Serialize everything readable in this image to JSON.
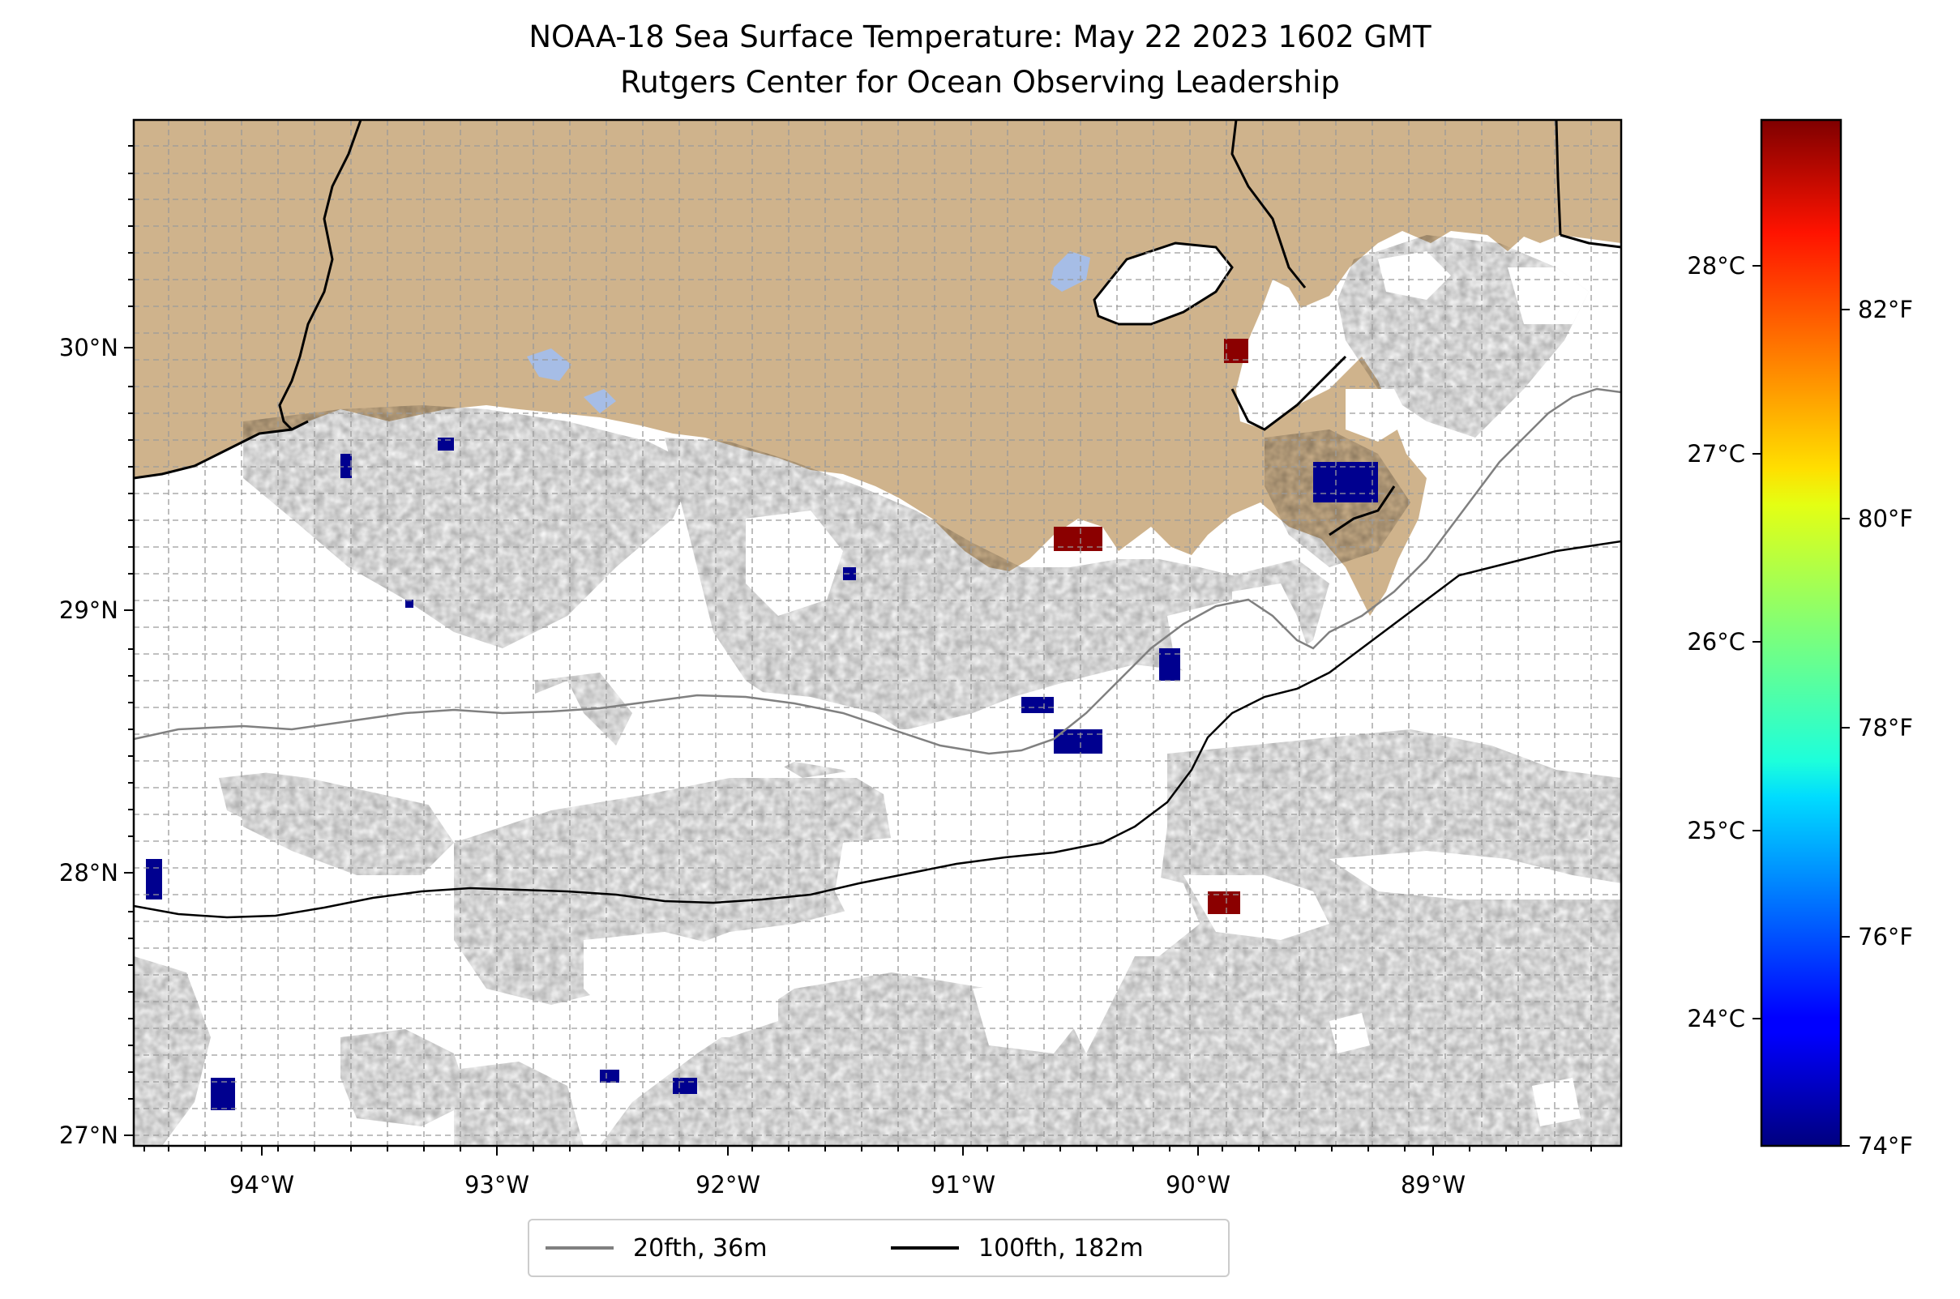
{
  "title": {
    "line1": "NOAA-18 Sea Surface Temperature: May 22 2023 1602 GMT",
    "line2": "Rutgers Center for Ocean Observing Leadership"
  },
  "map": {
    "land_color": "#cfb38c",
    "no_data_color": "#ffffff",
    "lake_color": "#a6bde6",
    "gridlines": "dashed",
    "lon_ticks": [
      "94°W",
      "93°W",
      "92°W",
      "91°W",
      "90°W",
      "89°W"
    ],
    "lat_ticks": [
      "30°N",
      "29°N",
      "28°N",
      "27°N"
    ]
  },
  "colorbar": {
    "colormap": "jet",
    "celsius_ticks": [
      "28°C",
      "27°C",
      "26°C",
      "25°C",
      "24°C"
    ],
    "fahrenheit_ticks": [
      "82°F",
      "80°F",
      "78°F",
      "76°F",
      "74°F"
    ]
  },
  "legend": {
    "items": [
      {
        "label": "20fth, 36m",
        "color": "#808080"
      },
      {
        "label": "100fth, 182m",
        "color": "#000000"
      }
    ]
  }
}
